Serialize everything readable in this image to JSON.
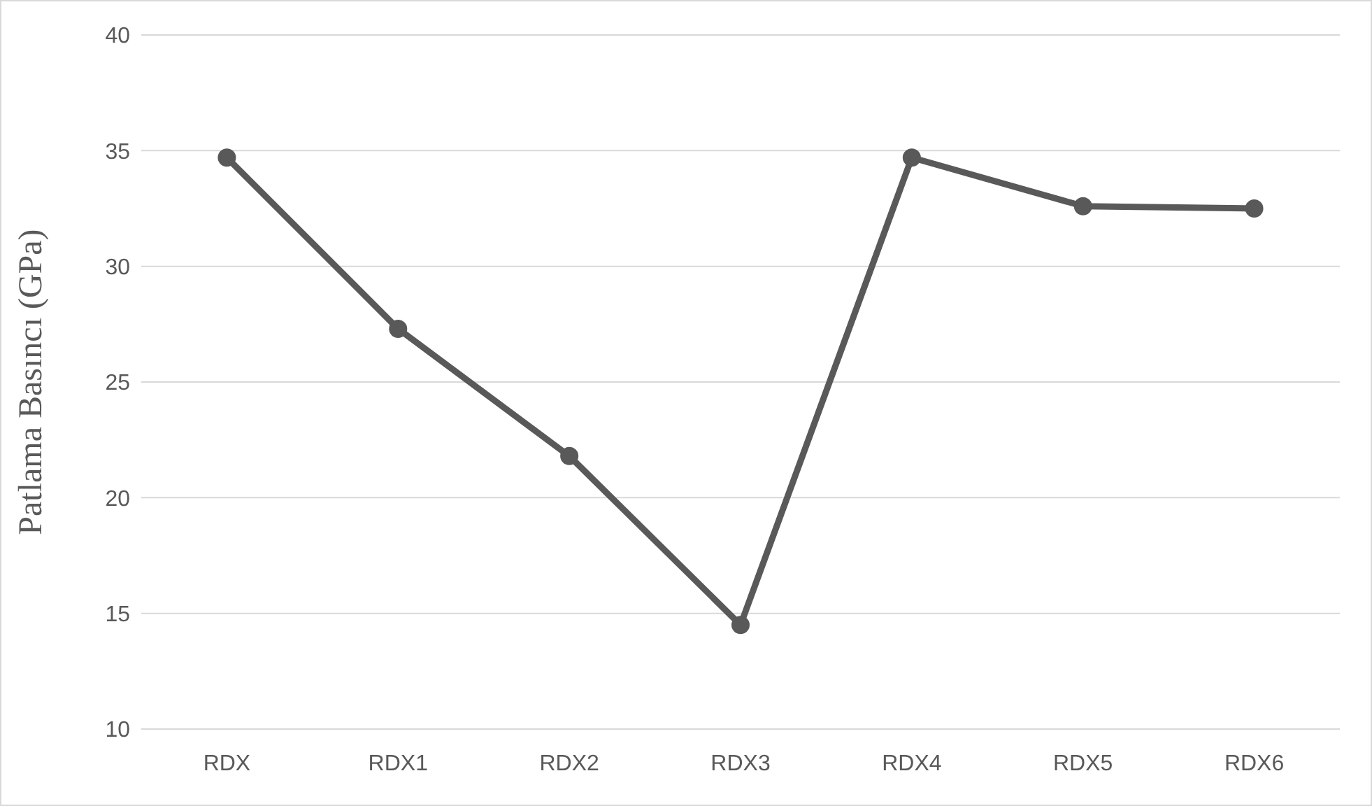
{
  "chart_data": {
    "type": "line",
    "ylabel": "Patlama Basıncı (GPa)",
    "categories": [
      "RDX",
      "RDX1",
      "RDX2",
      "RDX3",
      "RDX4",
      "RDX5",
      "RDX6"
    ],
    "series": [
      {
        "color": "#595959",
        "values": [
          34.7,
          27.3,
          21.8,
          14.5,
          34.7,
          32.6,
          32.5
        ]
      }
    ],
    "ylim": [
      10,
      40
    ],
    "yticks": [
      10,
      15,
      20,
      25,
      30,
      35,
      40
    ],
    "grid": "y",
    "marker": "circle",
    "line_style": "solid"
  }
}
